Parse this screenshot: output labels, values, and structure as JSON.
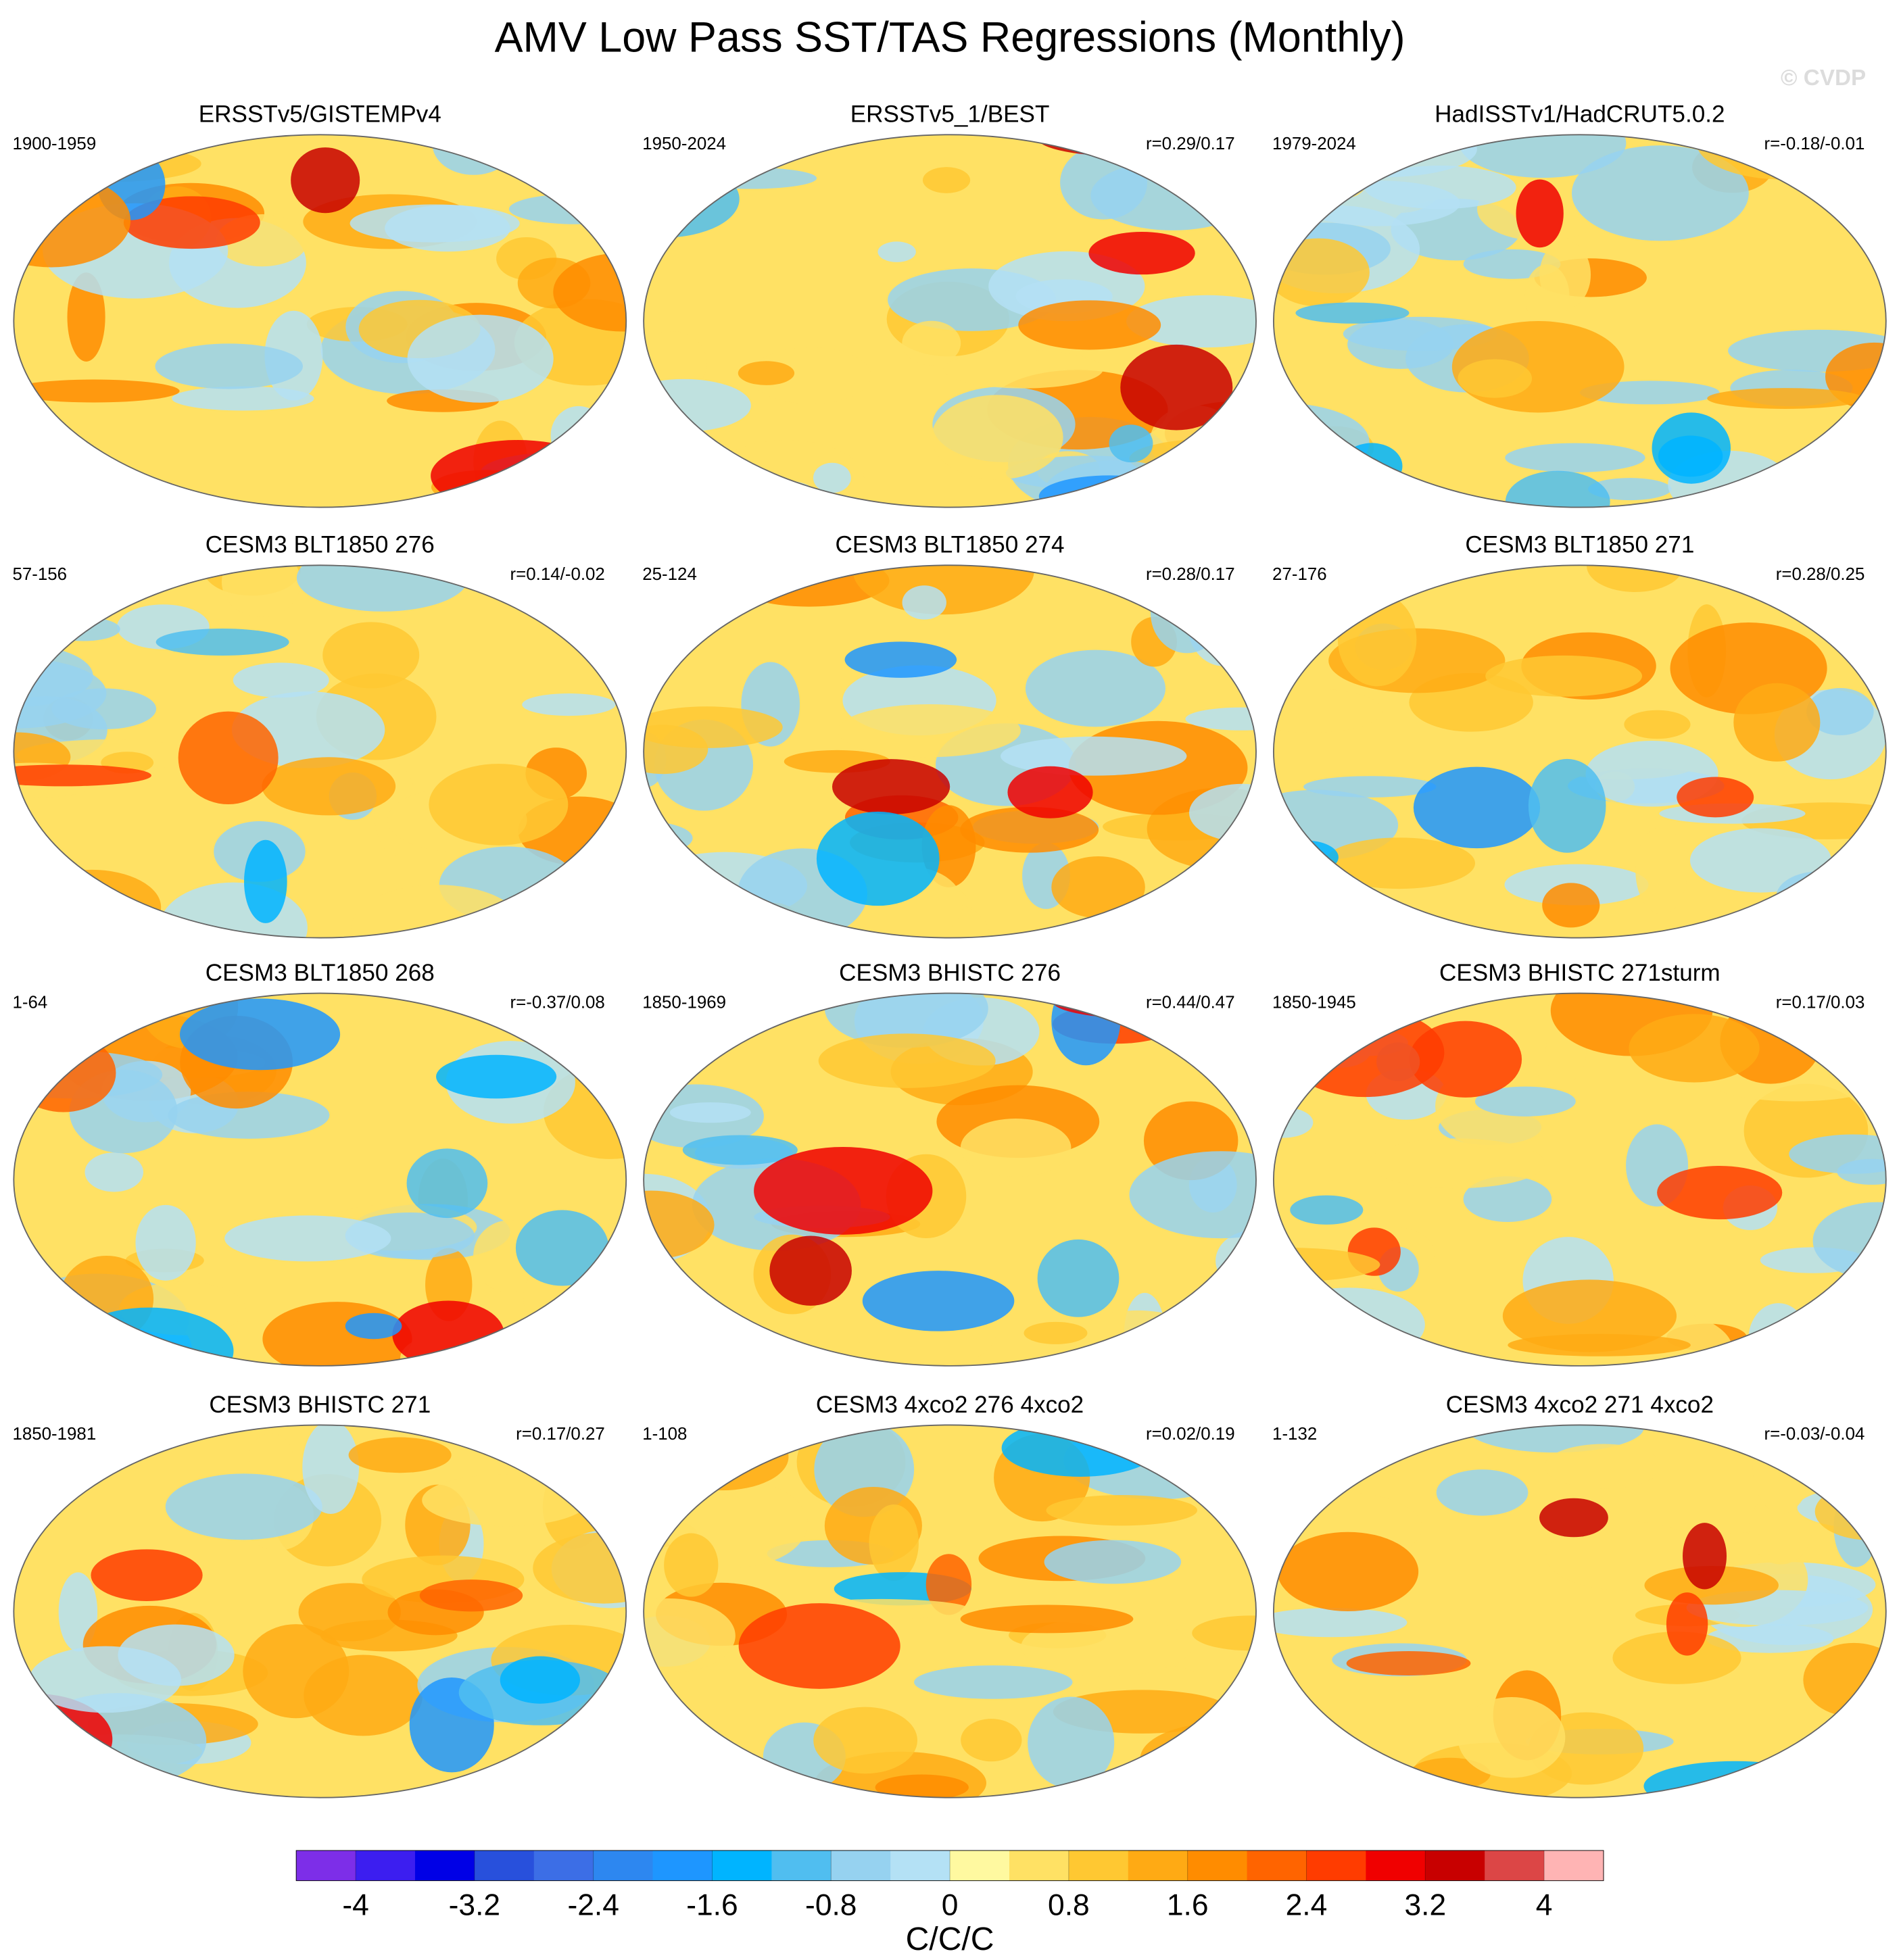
{
  "chart_data": {
    "type": "map-panel",
    "title": "AMV Low Pass SST/TAS Regressions (Monthly)",
    "watermark": "© CVDP",
    "panels": [
      {
        "title": "ERSSTv5/GISTEMPv4",
        "period": "1900-1959"
      },
      {
        "title": "ERSSTv5_1/BEST",
        "period": "1950-2024",
        "r": "r=0.29/0.17"
      },
      {
        "title": "HadISSTv1/HadCRUT5.0.2",
        "period": "1979-2024",
        "r": "r=-0.18/-0.01"
      },
      {
        "title": "CESM3 BLT1850 276",
        "period": "57-156",
        "r": "r=0.14/-0.02"
      },
      {
        "title": "CESM3 BLT1850 274",
        "period": "25-124",
        "r": "r=0.28/0.17"
      },
      {
        "title": "CESM3 BLT1850 271",
        "period": "27-176",
        "r": "r=0.28/0.25"
      },
      {
        "title": "CESM3 BLT1850 268",
        "period": "1-64",
        "r": "r=-0.37/0.08"
      },
      {
        "title": "CESM3 BHISTC 276",
        "period": "1850-1969",
        "r": "r=0.44/0.47"
      },
      {
        "title": "CESM3 BHISTC 271sturm",
        "period": "1850-1945",
        "r": "r=0.17/0.03"
      },
      {
        "title": "CESM3 BHISTC 271",
        "period": "1850-1981",
        "r": "r=0.17/0.27"
      },
      {
        "title": "CESM3 4xco2 276 4xco2",
        "period": "1-108",
        "r": "r=0.02/0.19"
      },
      {
        "title": "CESM3 4xco2 271 4xco2",
        "period": "1-132",
        "r": "r=-0.03/-0.04"
      }
    ],
    "colorbar": {
      "label": "C/C/C",
      "range": [
        -4.4,
        4.4
      ],
      "ticks": [
        -4,
        -3.2,
        -2.4,
        -1.6,
        -0.8,
        0,
        0.8,
        1.6,
        2.4,
        3.2,
        4
      ],
      "colors": [
        "#7d2ee8",
        "#3c1ef0",
        "#0000e6",
        "#2850dc",
        "#3c6ee6",
        "#2d87f0",
        "#1e96ff",
        "#00b4ff",
        "#50bef0",
        "#96d2f0",
        "#b4e1f5",
        "#fff9a0",
        "#ffe164",
        "#ffc832",
        "#ffaa14",
        "#ff8c00",
        "#ff6400",
        "#ff3c00",
        "#f00000",
        "#c80000",
        "#dc4646",
        "#ffb4b4"
      ]
    }
  }
}
